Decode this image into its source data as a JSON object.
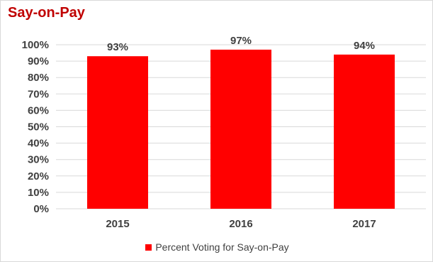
{
  "colors": {
    "bar": "#ff0000",
    "title": "#c00000",
    "grid": "#d9d9d9",
    "text": "#404040"
  },
  "chart_data": {
    "type": "bar",
    "title": "Say-on-Pay",
    "categories": [
      "2015",
      "2016",
      "2017"
    ],
    "series": [
      {
        "name": "Percent Voting for Say-on-Pay",
        "values": [
          93,
          97,
          94
        ]
      }
    ],
    "data_labels": [
      "93%",
      "97%",
      "94%"
    ],
    "yticks": [
      "0%",
      "10%",
      "20%",
      "30%",
      "40%",
      "50%",
      "60%",
      "70%",
      "80%",
      "90%",
      "100%"
    ],
    "ylim": [
      0,
      100
    ],
    "grid": true,
    "legend_position": "bottom"
  }
}
